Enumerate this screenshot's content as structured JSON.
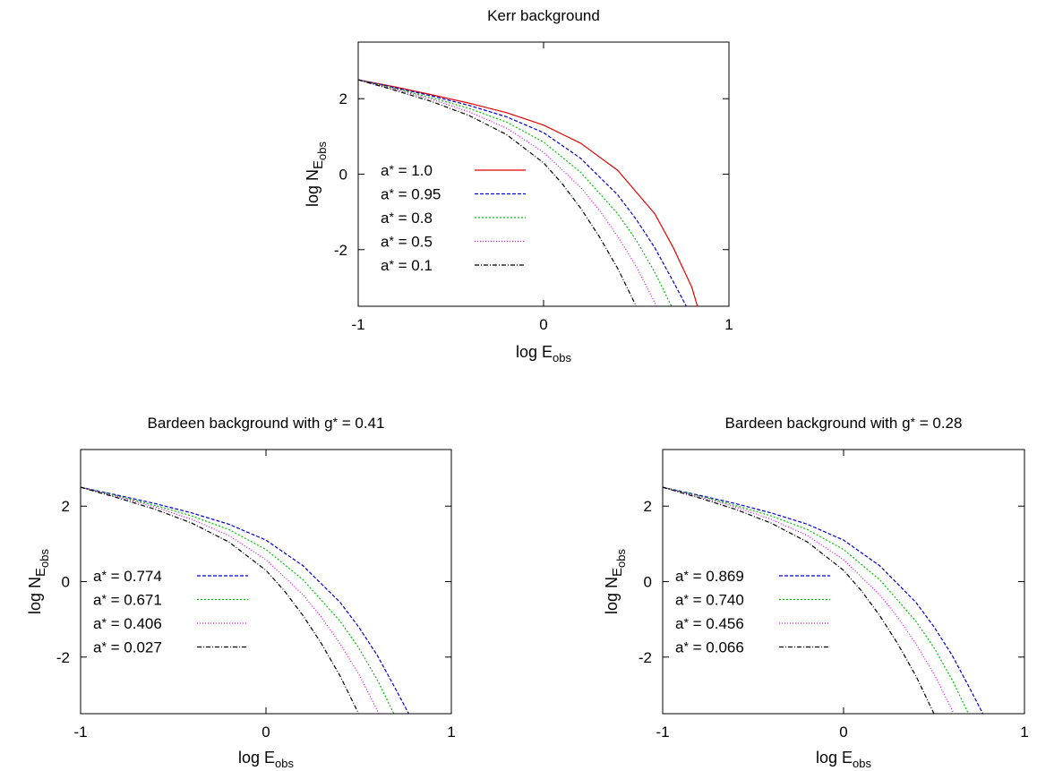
{
  "chart_data": [
    {
      "type": "line",
      "title": "Kerr background",
      "xlabel": "log E",
      "xlabel_sub": "obs",
      "ylabel": "log N",
      "ylabel_sub": "E",
      "ylabel_subsub": "obs",
      "xlim": [
        -1,
        1
      ],
      "ylim": [
        -3.5,
        3.5
      ],
      "xticks": [
        -1,
        0,
        1
      ],
      "yticks": [
        -2,
        0,
        2
      ],
      "xtick_labels": [
        "-1",
        "0",
        "1"
      ],
      "ytick_labels": [
        "-2",
        "0",
        "2"
      ],
      "legend": "inside-left",
      "series": [
        {
          "name": "a* = 1.0",
          "color": "#e00000",
          "dash": "none",
          "x": [
            -1.0,
            -0.8,
            -0.6,
            -0.4,
            -0.2,
            0.0,
            0.2,
            0.4,
            0.6,
            0.7,
            0.8,
            0.83
          ],
          "y": [
            2.5,
            2.31,
            2.1,
            1.88,
            1.63,
            1.3,
            0.82,
            0.1,
            -1.05,
            -1.95,
            -3.0,
            -3.5
          ]
        },
        {
          "name": "a* = 0.95",
          "color": "#0000d0",
          "dash": "4 2",
          "x": [
            -1.0,
            -0.8,
            -0.6,
            -0.4,
            -0.2,
            0.0,
            0.2,
            0.4,
            0.5,
            0.6,
            0.7,
            0.77
          ],
          "y": [
            2.5,
            2.29,
            2.07,
            1.82,
            1.52,
            1.1,
            0.42,
            -0.55,
            -1.2,
            -1.95,
            -2.85,
            -3.5
          ]
        },
        {
          "name": "a* = 0.8",
          "color": "#00c000",
          "dash": "2 2",
          "x": [
            -1.0,
            -0.8,
            -0.6,
            -0.4,
            -0.2,
            0.0,
            0.2,
            0.4,
            0.5,
            0.6,
            0.69
          ],
          "y": [
            2.5,
            2.27,
            2.02,
            1.74,
            1.38,
            0.85,
            0.05,
            -1.05,
            -1.75,
            -2.6,
            -3.5
          ]
        },
        {
          "name": "a* = 0.5",
          "color": "#e000e0",
          "dash": "1 2",
          "x": [
            -1.0,
            -0.8,
            -0.6,
            -0.4,
            -0.2,
            0.0,
            0.2,
            0.3,
            0.4,
            0.5,
            0.61
          ],
          "y": [
            2.5,
            2.25,
            1.98,
            1.65,
            1.22,
            0.58,
            -0.35,
            -0.95,
            -1.65,
            -2.45,
            -3.5
          ]
        },
        {
          "name": "a* = 0.1",
          "color": "#000000",
          "dash": "5 2 1 2",
          "x": [
            -1.0,
            -0.8,
            -0.6,
            -0.4,
            -0.2,
            0.0,
            0.1,
            0.2,
            0.3,
            0.4,
            0.5
          ],
          "y": [
            2.5,
            2.22,
            1.92,
            1.55,
            1.05,
            0.3,
            -0.25,
            -0.9,
            -1.65,
            -2.5,
            -3.5
          ]
        }
      ]
    },
    {
      "type": "line",
      "title": "Bardeen background with g* = 0.41",
      "xlabel": "log E",
      "xlabel_sub": "obs",
      "ylabel": "log N",
      "ylabel_sub": "E",
      "ylabel_subsub": "obs",
      "xlim": [
        -1,
        1
      ],
      "ylim": [
        -3.5,
        3.5
      ],
      "xticks": [
        -1,
        0,
        1
      ],
      "yticks": [
        -2,
        0,
        2
      ],
      "xtick_labels": [
        "-1",
        "0",
        "1"
      ],
      "ytick_labels": [
        "-2",
        "0",
        "2"
      ],
      "legend": "inside-left",
      "series": [
        {
          "name": "a* = 0.774",
          "color": "#0000d0",
          "dash": "4 2",
          "x": [
            -1.0,
            -0.8,
            -0.6,
            -0.4,
            -0.2,
            0.0,
            0.2,
            0.4,
            0.5,
            0.6,
            0.7,
            0.77
          ],
          "y": [
            2.5,
            2.29,
            2.07,
            1.82,
            1.52,
            1.1,
            0.42,
            -0.55,
            -1.2,
            -1.95,
            -2.85,
            -3.5
          ]
        },
        {
          "name": "a* = 0.671",
          "color": "#00c000",
          "dash": "2 2",
          "x": [
            -1.0,
            -0.8,
            -0.6,
            -0.4,
            -0.2,
            0.0,
            0.2,
            0.4,
            0.5,
            0.6,
            0.69
          ],
          "y": [
            2.5,
            2.27,
            2.02,
            1.74,
            1.38,
            0.85,
            0.05,
            -1.05,
            -1.75,
            -2.6,
            -3.5
          ]
        },
        {
          "name": "a* = 0.406",
          "color": "#e000e0",
          "dash": "1 2",
          "x": [
            -1.0,
            -0.8,
            -0.6,
            -0.4,
            -0.2,
            0.0,
            0.2,
            0.3,
            0.4,
            0.5,
            0.61
          ],
          "y": [
            2.5,
            2.25,
            1.98,
            1.65,
            1.22,
            0.58,
            -0.35,
            -0.95,
            -1.65,
            -2.45,
            -3.5
          ]
        },
        {
          "name": "a* = 0.027",
          "color": "#000000",
          "dash": "5 2 1 2",
          "x": [
            -1.0,
            -0.8,
            -0.6,
            -0.4,
            -0.2,
            0.0,
            0.1,
            0.2,
            0.3,
            0.4,
            0.5
          ],
          "y": [
            2.5,
            2.22,
            1.92,
            1.55,
            1.05,
            0.3,
            -0.25,
            -0.9,
            -1.65,
            -2.5,
            -3.5
          ]
        }
      ]
    },
    {
      "type": "line",
      "title": "Bardeen background with g* = 0.28",
      "xlabel": "log E",
      "xlabel_sub": "obs",
      "ylabel": "log N",
      "ylabel_sub": "E",
      "ylabel_subsub": "obs",
      "xlim": [
        -1,
        1
      ],
      "ylim": [
        -3.5,
        3.5
      ],
      "xticks": [
        -1,
        0,
        1
      ],
      "yticks": [
        -2,
        0,
        2
      ],
      "xtick_labels": [
        "-1",
        "0",
        "1"
      ],
      "ytick_labels": [
        "-2",
        "0",
        "2"
      ],
      "legend": "inside-left",
      "series": [
        {
          "name": "a* = 0.869",
          "color": "#0000d0",
          "dash": "4 2",
          "x": [
            -1.0,
            -0.8,
            -0.6,
            -0.4,
            -0.2,
            0.0,
            0.2,
            0.4,
            0.5,
            0.6,
            0.7,
            0.77
          ],
          "y": [
            2.5,
            2.29,
            2.07,
            1.82,
            1.52,
            1.1,
            0.42,
            -0.55,
            -1.2,
            -1.95,
            -2.85,
            -3.5
          ]
        },
        {
          "name": "a* = 0.740",
          "color": "#00c000",
          "dash": "2 2",
          "x": [
            -1.0,
            -0.8,
            -0.6,
            -0.4,
            -0.2,
            0.0,
            0.2,
            0.4,
            0.5,
            0.6,
            0.69
          ],
          "y": [
            2.5,
            2.27,
            2.02,
            1.74,
            1.38,
            0.85,
            0.05,
            -1.05,
            -1.75,
            -2.6,
            -3.5
          ]
        },
        {
          "name": "a* = 0.456",
          "color": "#e000e0",
          "dash": "1 2",
          "x": [
            -1.0,
            -0.8,
            -0.6,
            -0.4,
            -0.2,
            0.0,
            0.2,
            0.3,
            0.4,
            0.5,
            0.61
          ],
          "y": [
            2.5,
            2.25,
            1.98,
            1.65,
            1.22,
            0.58,
            -0.35,
            -0.95,
            -1.65,
            -2.45,
            -3.5
          ]
        },
        {
          "name": "a* = 0.066",
          "color": "#000000",
          "dash": "5 2 1 2",
          "x": [
            -1.0,
            -0.8,
            -0.6,
            -0.4,
            -0.2,
            0.0,
            0.1,
            0.2,
            0.3,
            0.4,
            0.5
          ],
          "y": [
            2.5,
            2.22,
            1.92,
            1.55,
            1.05,
            0.3,
            -0.25,
            -0.9,
            -1.65,
            -2.5,
            -3.5
          ]
        }
      ]
    }
  ]
}
